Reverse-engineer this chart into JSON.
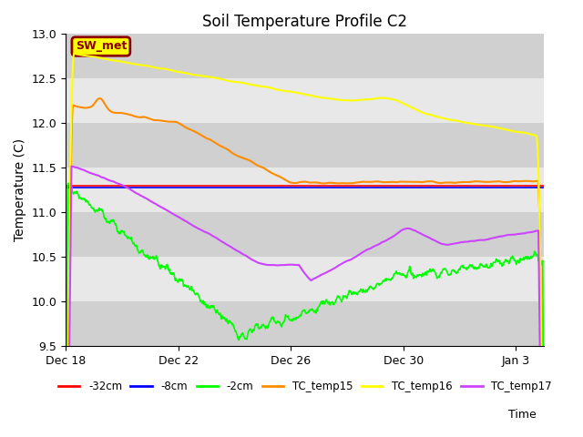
{
  "title": "Soil Temperature Profile C2",
  "xlabel": "Time",
  "ylabel": "Temperature (C)",
  "ylim": [
    9.5,
    13.0
  ],
  "yticks": [
    9.5,
    10.0,
    10.5,
    11.0,
    11.5,
    12.0,
    12.5,
    13.0
  ],
  "background_color": "#ffffff",
  "plot_bg_color": "#e8e8e8",
  "band_colors": [
    "#d8d8d8",
    "#e8e8e8"
  ],
  "sw_met_label": "SW_met",
  "sw_met_bg": "#ffff00",
  "sw_met_border": "#8b0000",
  "sw_met_text_color": "#8b0000",
  "series": {
    "neg32cm": {
      "color": "#ff0000",
      "label": "-32cm",
      "lw": 1.2
    },
    "neg8cm": {
      "color": "#0000ff",
      "label": "-8cm",
      "lw": 1.2
    },
    "neg2cm": {
      "color": "#00ff00",
      "label": "-2cm",
      "lw": 1.2
    },
    "tc15": {
      "color": "#ff8c00",
      "label": "TC_temp15",
      "lw": 1.5
    },
    "tc16": {
      "color": "#ffff00",
      "label": "TC_temp16",
      "lw": 1.5
    },
    "tc17": {
      "color": "#cc44ff",
      "label": "TC_temp17",
      "lw": 1.5
    }
  },
  "x_tick_labels": [
    "Dec 18",
    "Dec 22",
    "Dec 26",
    "Dec 30",
    "Jan 3"
  ],
  "x_tick_positions": [
    0,
    4,
    8,
    12,
    16
  ],
  "total_days": 18,
  "figsize": [
    6.4,
    4.8
  ],
  "dpi": 100
}
